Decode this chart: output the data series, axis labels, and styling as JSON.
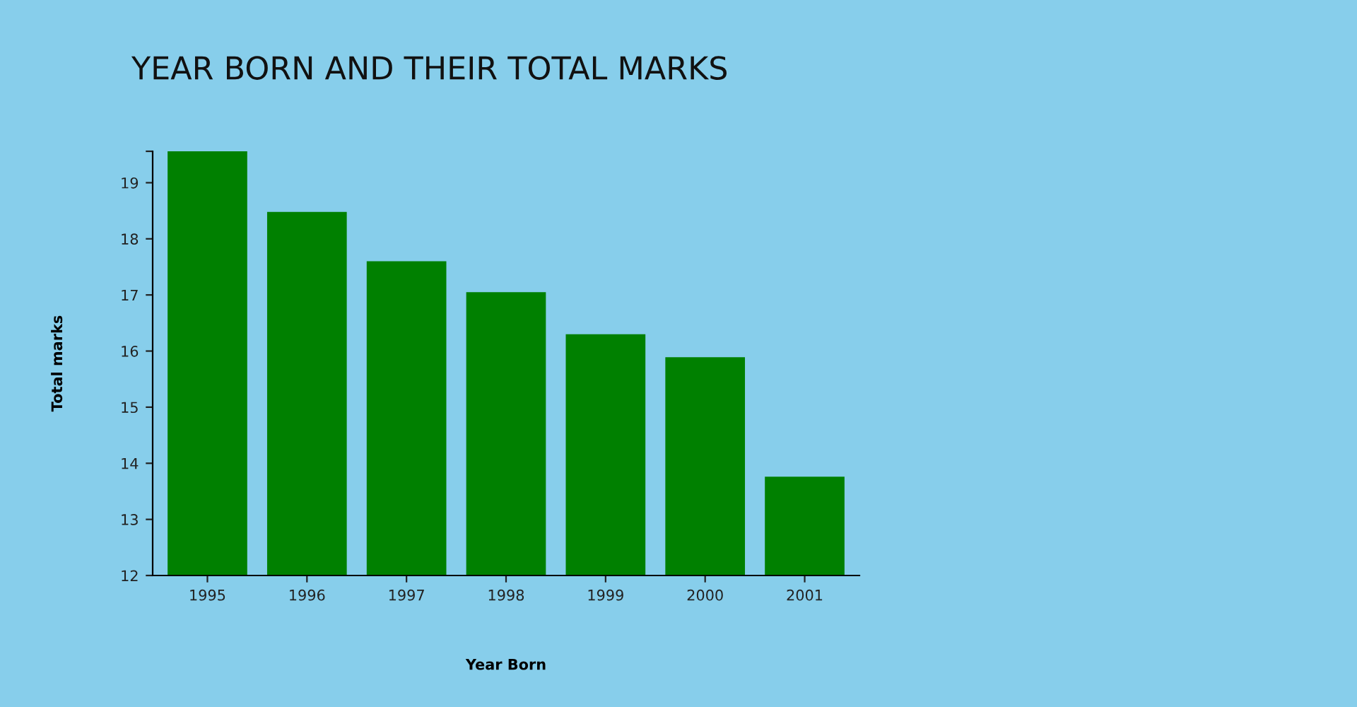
{
  "chart_data": {
    "type": "bar",
    "title": "YEAR BORN AND THEIR TOTAL MARKS",
    "xlabel": "Year Born",
    "ylabel": "Total marks",
    "categories": [
      "1995",
      "1996",
      "1997",
      "1998",
      "1999",
      "2000",
      "2001"
    ],
    "values": [
      19.56,
      18.48,
      17.6,
      17.05,
      16.3,
      15.89,
      13.76
    ],
    "color": "#008000",
    "ylim": [
      12,
      19.56
    ],
    "yticks": [
      12,
      13,
      14,
      15,
      16,
      17,
      18,
      19,
      {
        "value": 19.56,
        "label": null
      }
    ],
    "grid": false
  }
}
